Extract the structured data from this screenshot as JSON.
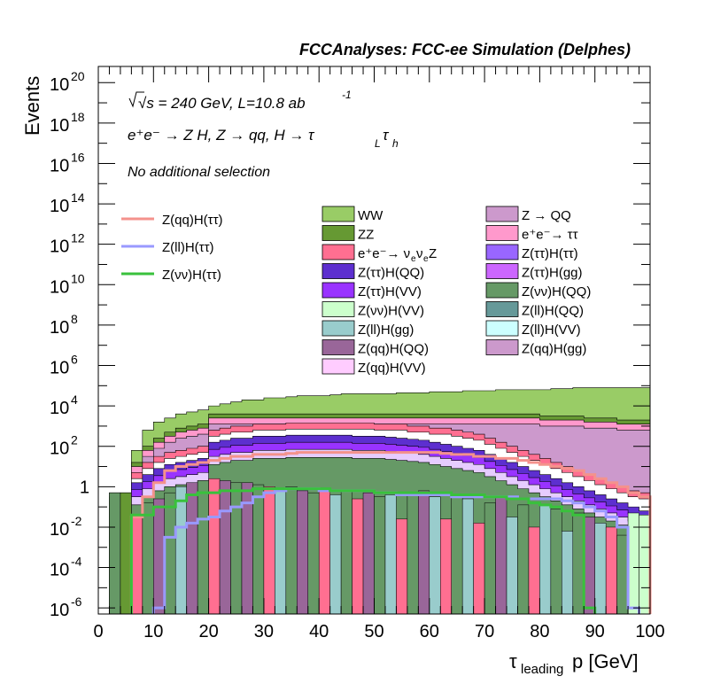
{
  "chart_data": {
    "type": "histogram-stacked-log",
    "title": "FCCAnalyses: FCC-ee Simulation (Delphes)",
    "annotations": {
      "energy": "√s = 240 GeV, L=10.8 ab",
      "energy_exp": "-1",
      "process": "e⁺e⁻ → Z H, Z → qq, H → τ",
      "process_sub1": "L",
      "process_tau": "τ",
      "process_sub2": "h",
      "selection": "No additional selection"
    },
    "xlabel": "p [GeV]",
    "xlabel_tau": "τ",
    "xlabel_sub": "leading",
    "ylabel": "Events",
    "xlim": [
      0,
      100
    ],
    "ylim_log10": [
      -6.3,
      20.8
    ],
    "log_y": true,
    "x_ticks": [
      "0",
      "10",
      "20",
      "30",
      "40",
      "50",
      "60",
      "70",
      "80",
      "90",
      "100"
    ],
    "y_ticks": [
      {
        "mant": "10",
        "exp": "20",
        "v": 20
      },
      {
        "mant": "10",
        "exp": "18",
        "v": 18
      },
      {
        "mant": "10",
        "exp": "16",
        "v": 16
      },
      {
        "mant": "10",
        "exp": "14",
        "v": 14
      },
      {
        "mant": "10",
        "exp": "12",
        "v": 12
      },
      {
        "mant": "10",
        "exp": "10",
        "v": 10
      },
      {
        "mant": "10",
        "exp": "8",
        "v": 8
      },
      {
        "mant": "10",
        "exp": "6",
        "v": 6
      },
      {
        "mant": "10",
        "exp": "4",
        "v": 4
      },
      {
        "mant": "10",
        "exp": "2",
        "v": 2
      },
      {
        "mant": "1",
        "exp": "",
        "v": 0
      },
      {
        "mant": "10",
        "exp": "-2",
        "v": -2
      },
      {
        "mant": "10",
        "exp": "-4",
        "v": -4
      },
      {
        "mant": "10",
        "exp": "-6",
        "v": -6
      }
    ],
    "bin_width": 2,
    "x_bins_start": [
      2,
      4,
      6,
      8,
      10,
      12,
      14,
      16,
      18,
      20,
      22,
      24,
      26,
      28,
      30,
      32,
      34,
      36,
      38,
      40,
      42,
      44,
      46,
      48,
      50,
      52,
      54,
      56,
      58,
      60,
      62,
      64,
      66,
      68,
      70,
      72,
      74,
      76,
      78,
      80,
      82,
      84,
      86,
      88,
      90,
      92,
      94,
      96,
      98
    ],
    "stacked_log10_tops": {
      "WW_total": [
        -0.3,
        -0.3,
        1.8,
        2.8,
        3.2,
        3.4,
        3.6,
        3.7,
        3.8,
        4.0,
        4.1,
        4.2,
        4.3,
        4.3,
        4.4,
        4.4,
        4.45,
        4.5,
        4.5,
        4.5,
        4.55,
        4.6,
        4.6,
        4.6,
        4.6,
        4.6,
        4.65,
        4.65,
        4.65,
        4.7,
        4.7,
        4.7,
        4.75,
        4.75,
        4.75,
        4.8,
        4.8,
        4.8,
        4.8,
        4.8,
        4.85,
        4.85,
        4.9,
        4.9,
        4.9,
        4.9,
        4.9,
        4.9,
        4.9
      ],
      "ZZ": [
        -0.5,
        -0.5,
        1.2,
        2.0,
        2.4,
        2.7,
        2.9,
        3.0,
        3.1,
        3.6,
        3.6,
        3.6,
        3.6,
        3.6,
        3.6,
        3.6,
        3.6,
        3.6,
        3.6,
        3.6,
        3.6,
        3.6,
        3.6,
        3.6,
        3.6,
        3.6,
        3.6,
        3.6,
        3.6,
        3.6,
        3.6,
        3.6,
        3.6,
        3.6,
        3.6,
        3.6,
        3.6,
        3.6,
        3.6,
        3.5,
        3.5,
        3.5,
        3.5,
        3.4,
        3.4,
        3.4,
        3.3,
        3.3,
        3.3
      ],
      "nunuZ": [
        -1.0,
        -1.0,
        0.7,
        1.2,
        1.5,
        1.7,
        1.8,
        1.9,
        2.0,
        2.8,
        2.9,
        3.0,
        3.0,
        3.1,
        3.1,
        3.1,
        3.15,
        3.15,
        3.15,
        3.15,
        3.15,
        3.15,
        3.15,
        3.15,
        3.1,
        3.1,
        3.1,
        3.0,
        3.0,
        2.9,
        2.9,
        2.8,
        2.7,
        2.6,
        2.4,
        2.2,
        2.0,
        1.8,
        1.6,
        1.4,
        1.2,
        1.0,
        0.8,
        0.6,
        0.4,
        0.2,
        0.0,
        -0.2,
        -0.3
      ],
      "Zqq_QQ": [
        -2.0,
        -2.0,
        0.2,
        0.6,
        0.9,
        1.1,
        1.2,
        1.3,
        1.4,
        2.2,
        2.3,
        2.4,
        2.4,
        2.5,
        2.5,
        2.5,
        2.55,
        2.55,
        2.55,
        2.55,
        2.55,
        2.55,
        2.5,
        2.5,
        2.5,
        2.45,
        2.4,
        2.35,
        2.3,
        2.2,
        2.1,
        2.0,
        1.9,
        1.8,
        1.6,
        1.4,
        1.2,
        1.0,
        0.8,
        0.6,
        0.4,
        0.2,
        0.0,
        -0.2,
        -0.4,
        -0.6,
        -0.8,
        -1.0,
        -1.2
      ]
    },
    "overlay_series": [
      {
        "name": "Z(qq)H(ττ)",
        "color": "#f4928c",
        "log10": [
          null,
          null,
          -1.5,
          -0.5,
          0.2,
          0.8,
          1.0,
          1.1,
          1.2,
          1.3,
          1.4,
          1.5,
          1.5,
          1.6,
          1.6,
          1.6,
          1.65,
          1.7,
          1.7,
          1.7,
          1.7,
          1.7,
          1.7,
          1.7,
          1.7,
          1.7,
          1.7,
          1.7,
          1.7,
          1.7,
          1.65,
          1.6,
          1.6,
          1.5,
          1.5,
          1.4,
          1.4,
          1.3,
          1.2,
          1.1,
          1.0,
          0.9,
          0.8,
          0.6,
          0.4,
          0.2,
          0.0,
          -0.3,
          -0.5
        ]
      },
      {
        "name": "Z(ll)H(ττ)",
        "color": "#9999ff",
        "log10": [
          null,
          null,
          null,
          null,
          -6.0,
          -2.5,
          -2.0,
          -1.8,
          -1.6,
          -1.5,
          -1.2,
          -1.0,
          -0.8,
          -0.5,
          -0.3,
          -0.2,
          -0.1,
          -0.1,
          -0.1,
          -0.2,
          -0.2,
          -0.2,
          -0.2,
          -0.2,
          -0.3,
          -0.3,
          -0.4,
          -0.4,
          -0.4,
          -0.4,
          -0.4,
          -0.5,
          -0.5,
          -0.5,
          -0.5,
          -0.5,
          -0.5,
          -0.6,
          -0.6,
          -0.6,
          -0.6,
          -0.7,
          -0.8,
          -1.0,
          -1.2,
          -1.5,
          -2.0,
          -6.0,
          null
        ]
      },
      {
        "name": "Z(νν)H(ττ)",
        "color": "#39c13c",
        "log10": [
          null,
          null,
          -1.4,
          -1.4,
          -1.0,
          -1.0,
          -0.7,
          -0.4,
          -0.3,
          -0.3,
          -0.2,
          -0.2,
          -0.2,
          -0.1,
          -0.1,
          -0.1,
          -0.1,
          -0.1,
          -0.1,
          -0.1,
          -0.2,
          -0.2,
          -0.2,
          -0.2,
          -0.3,
          -0.3,
          -0.3,
          -0.3,
          -0.3,
          -0.3,
          -0.3,
          -0.4,
          -0.4,
          -0.4,
          -0.5,
          -0.5,
          -0.6,
          -0.6,
          -0.8,
          -0.9,
          -1.0,
          -1.2,
          -1.4,
          -6.0,
          null,
          null,
          null,
          null,
          null
        ]
      }
    ],
    "legend_left": [
      {
        "name": "Z(qq)H(ττ)",
        "color": "#f4928c",
        "kind": "line"
      },
      {
        "name": "Z(ll)H(ττ)",
        "color": "#9999ff",
        "kind": "line"
      },
      {
        "name": "Z(νν)H(ττ)",
        "color": "#39c13c",
        "kind": "line"
      }
    ],
    "legend_mid": [
      {
        "name": "WW",
        "color": "#99cc66"
      },
      {
        "name": "ZZ",
        "color": "#669933"
      },
      {
        "name": "e⁺e⁻→ ν",
        "name_sub": "e",
        "name_mid": "ν",
        "name_sub2": "e",
        "name_end": " Z",
        "color": "#ff6f91"
      },
      {
        "name": "Z(ττ)H(QQ)",
        "color": "#5d2fcf"
      },
      {
        "name": "Z(ττ)H(VV)",
        "color": "#9933ff"
      },
      {
        "name": "Z(νν)H(VV)",
        "color": "#ccffcc"
      },
      {
        "name": "Z(ll)H(gg)",
        "color": "#99cccc"
      },
      {
        "name": "Z(qq)H(QQ)",
        "color": "#996699"
      },
      {
        "name": "Z(qq)H(VV)",
        "color": "#ffccff"
      }
    ],
    "legend_right": [
      {
        "name": "Z → QQ",
        "color": "#cc99cc"
      },
      {
        "name": "e⁺e⁻→ ττ",
        "color": "#ff99cc"
      },
      {
        "name": "Z(ττ)H(ττ)",
        "color": "#9966ff"
      },
      {
        "name": "Z(ττ)H(gg)",
        "color": "#cc66ff"
      },
      {
        "name": "Z(νν)H(QQ)",
        "color": "#669966"
      },
      {
        "name": "Z(ll)H(QQ)",
        "color": "#669999"
      },
      {
        "name": "Z(ll)H(VV)",
        "color": "#ccffff"
      },
      {
        "name": "Z(qq)H(gg)",
        "color": "#cc99cc"
      }
    ],
    "colors": {
      "WW": "#99cc66",
      "ZZ": "#669933",
      "ZtoQQ": "#cc99cc",
      "eetautau": "#ff99cc",
      "nunuZ": "#ff6f91",
      "purple_band": "#5d2fcf",
      "violet_band": "#9933ff",
      "low_green": "#669966",
      "low_teal": "#99cccc",
      "low_purple": "#996699",
      "low_pink": "#ff6f91"
    }
  }
}
